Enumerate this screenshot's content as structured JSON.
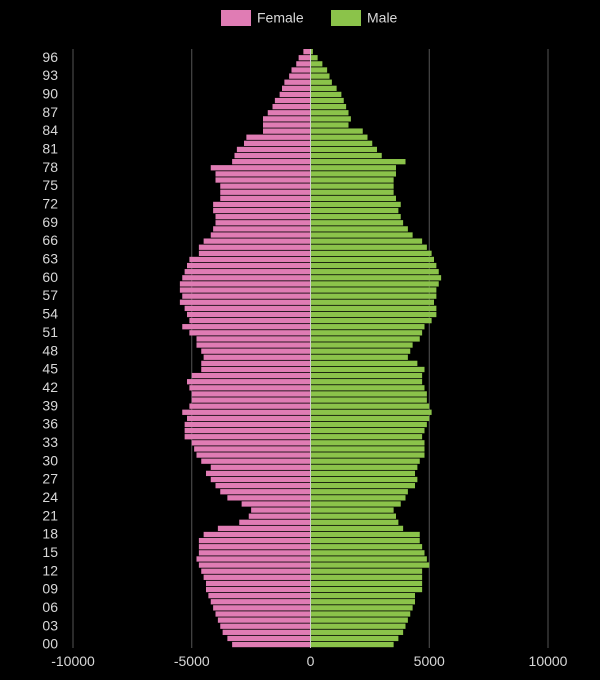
{
  "chart_data": {
    "type": "bar",
    "orientation": "horizontal",
    "layout": "population-pyramid",
    "legend_position": "top-center",
    "grid": true,
    "xlim": [
      -10000,
      10000
    ],
    "x_ticks": [
      -10000,
      -5000,
      0,
      5000,
      10000
    ],
    "x_tick_labels": [
      "-10000",
      "-5000",
      "0",
      "5000",
      "10000"
    ],
    "y_tick_labels": [
      "96",
      "93",
      "90",
      "87",
      "84",
      "81",
      "78",
      "75",
      "72",
      "69",
      "66",
      "63",
      "60",
      "57",
      "54",
      "51",
      "48",
      "45",
      "42",
      "39",
      "36",
      "33",
      "30",
      "27",
      "24",
      "21",
      "18",
      "15",
      "12",
      "09",
      "06",
      "03",
      "00"
    ],
    "ages": [
      0,
      1,
      2,
      3,
      4,
      5,
      6,
      7,
      8,
      9,
      10,
      11,
      12,
      13,
      14,
      15,
      16,
      17,
      18,
      19,
      20,
      21,
      22,
      23,
      24,
      25,
      26,
      27,
      28,
      29,
      30,
      31,
      32,
      33,
      34,
      35,
      36,
      37,
      38,
      39,
      40,
      41,
      42,
      43,
      44,
      45,
      46,
      47,
      48,
      49,
      50,
      51,
      52,
      53,
      54,
      55,
      56,
      57,
      58,
      59,
      60,
      61,
      62,
      63,
      64,
      65,
      66,
      67,
      68,
      69,
      70,
      71,
      72,
      73,
      74,
      75,
      76,
      77,
      78,
      79,
      80,
      81,
      82,
      83,
      84,
      85,
      86,
      87,
      88,
      89,
      90,
      91,
      92,
      93,
      94,
      95,
      96,
      97
    ],
    "series": [
      {
        "name": "Female",
        "color": "#e07cb4",
        "values": [
          3300,
          3500,
          3700,
          3800,
          3900,
          4000,
          4100,
          4200,
          4300,
          4400,
          4400,
          4500,
          4600,
          4700,
          4800,
          4700,
          4700,
          4700,
          4500,
          3900,
          3000,
          2600,
          2500,
          2900,
          3500,
          3800,
          4000,
          4200,
          4400,
          4200,
          4600,
          4800,
          4900,
          5000,
          5300,
          5300,
          5300,
          5200,
          5400,
          5100,
          5000,
          5000,
          5100,
          5200,
          5000,
          4600,
          4600,
          4500,
          4600,
          4800,
          4800,
          5100,
          5400,
          5100,
          5200,
          5300,
          5500,
          5400,
          5500,
          5500,
          5400,
          5300,
          5200,
          5100,
          4700,
          4700,
          4500,
          4200,
          4100,
          4000,
          4000,
          4100,
          4100,
          3800,
          3800,
          3800,
          4000,
          4000,
          4200,
          3300,
          3200,
          3100,
          2800,
          2700,
          2000,
          2000,
          2000,
          1800,
          1600,
          1500,
          1300,
          1200,
          1100,
          900,
          800,
          600,
          500,
          300
        ]
      },
      {
        "name": "Male",
        "color": "#8bc34a",
        "values": [
          3500,
          3700,
          3900,
          4000,
          4100,
          4200,
          4300,
          4400,
          4400,
          4700,
          4700,
          4700,
          4700,
          5000,
          4900,
          4800,
          4700,
          4600,
          4600,
          3900,
          3700,
          3600,
          3500,
          3800,
          4000,
          4100,
          4400,
          4500,
          4400,
          4500,
          4600,
          4800,
          4800,
          4800,
          4700,
          4800,
          4900,
          5000,
          5100,
          5000,
          4900,
          4900,
          4800,
          4700,
          4700,
          4800,
          4500,
          4100,
          4200,
          4300,
          4600,
          4700,
          4800,
          5100,
          5300,
          5300,
          5200,
          5300,
          5300,
          5400,
          5500,
          5400,
          5300,
          5200,
          5100,
          4900,
          4700,
          4300,
          4100,
          3900,
          3800,
          3700,
          3800,
          3600,
          3500,
          3500,
          3500,
          3600,
          3600,
          4000,
          3000,
          2800,
          2600,
          2400,
          2200,
          1600,
          1700,
          1600,
          1500,
          1400,
          1300,
          1100,
          900,
          800,
          700,
          500,
          300,
          100
        ]
      }
    ]
  }
}
